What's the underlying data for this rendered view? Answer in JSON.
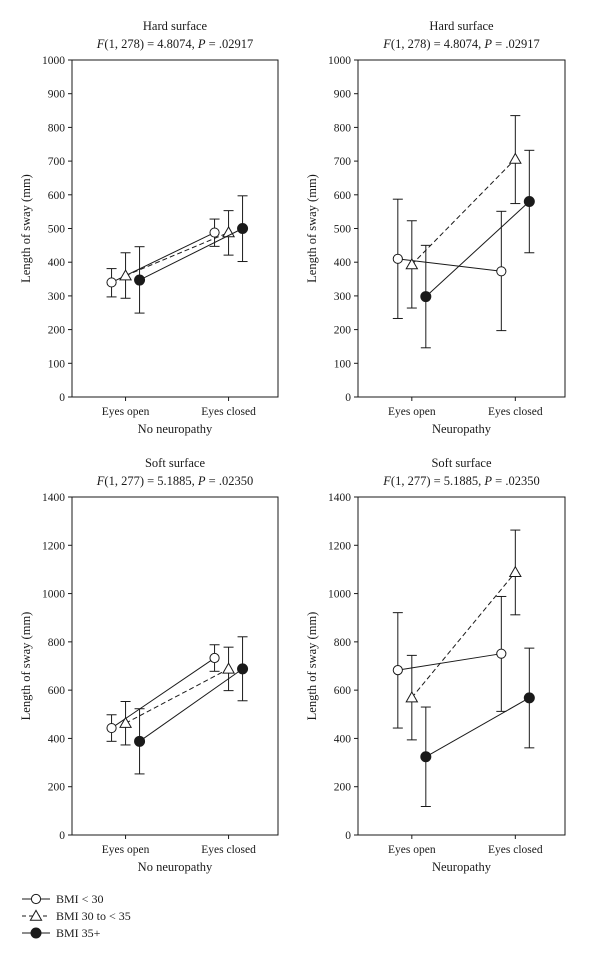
{
  "chart_data": [
    {
      "type": "line",
      "title": "Hard surface",
      "stat": {
        "f_df": "1, 278",
        "f_value": "4.8074",
        "p_value": ".02917"
      },
      "xlabel": "No neuropathy",
      "ylabel": "Length of sway (mm)",
      "categories": [
        "Eyes open",
        "Eyes closed"
      ],
      "ylim": [
        0,
        1000
      ],
      "yticks": [
        "0",
        "100",
        "200",
        "300",
        "400",
        "500",
        "600",
        "700",
        "800",
        "900",
        "1000"
      ],
      "ytick_values": [
        0,
        100,
        200,
        300,
        400,
        500,
        600,
        700,
        800,
        900,
        1000
      ],
      "series": [
        {
          "key": "bmi_lt30",
          "values": [
            340,
            488
          ],
          "lower": [
            297,
            447
          ],
          "upper": [
            381,
            528
          ]
        },
        {
          "key": "bmi_30_35",
          "values": [
            360,
            488
          ],
          "lower": [
            293,
            421
          ],
          "upper": [
            428,
            553
          ]
        },
        {
          "key": "bmi_35p",
          "values": [
            347,
            500
          ],
          "lower": [
            249,
            402
          ],
          "upper": [
            446,
            597
          ]
        }
      ]
    },
    {
      "type": "line",
      "title": "Hard surface",
      "stat": {
        "f_df": "1, 278",
        "f_value": "4.8074",
        "p_value": ".02917"
      },
      "xlabel": "Neuropathy",
      "ylabel": "Length of sway (mm)",
      "categories": [
        "Eyes open",
        "Eyes closed"
      ],
      "ylim": [
        0,
        1000
      ],
      "yticks": [
        "0",
        "100",
        "200",
        "300",
        "400",
        "500",
        "600",
        "700",
        "800",
        "900",
        "1000"
      ],
      "ytick_values": [
        0,
        100,
        200,
        300,
        400,
        500,
        600,
        700,
        800,
        900,
        1000
      ],
      "series": [
        {
          "key": "bmi_lt30",
          "values": [
            410,
            373
          ],
          "lower": [
            233,
            197
          ],
          "upper": [
            587,
            551
          ]
        },
        {
          "key": "bmi_30_35",
          "values": [
            393,
            706
          ],
          "lower": [
            264,
            574
          ],
          "upper": [
            523,
            835
          ]
        },
        {
          "key": "bmi_35p",
          "values": [
            298,
            580
          ],
          "lower": [
            146,
            428
          ],
          "upper": [
            450,
            732
          ]
        }
      ]
    },
    {
      "type": "line",
      "title": "Soft surface",
      "stat": {
        "f_df": "1, 277",
        "f_value": "5.1885",
        "p_value": ".02350"
      },
      "xlabel": "No neuropathy",
      "ylabel": "Length of sway (mm)",
      "categories": [
        "Eyes open",
        "Eyes closed"
      ],
      "ylim": [
        0,
        1400
      ],
      "yticks": [
        "0",
        "200",
        "400",
        "600",
        "800",
        "1000",
        "1200",
        "1400"
      ],
      "ytick_values": [
        0,
        200,
        400,
        600,
        800,
        1000,
        1200,
        1400
      ],
      "series": [
        {
          "key": "bmi_lt30",
          "values": [
            443,
            733
          ],
          "lower": [
            388,
            678
          ],
          "upper": [
            498,
            788
          ]
        },
        {
          "key": "bmi_30_35",
          "values": [
            463,
            688
          ],
          "lower": [
            373,
            598
          ],
          "upper": [
            553,
            778
          ]
        },
        {
          "key": "bmi_35p",
          "values": [
            388,
            688
          ],
          "lower": [
            253,
            556
          ],
          "upper": [
            523,
            821
          ]
        }
      ]
    },
    {
      "type": "line",
      "title": "Soft surface",
      "stat": {
        "f_df": "1, 277",
        "f_value": "5.1885",
        "p_value": ".02350"
      },
      "xlabel": "Neuropathy",
      "ylabel": "Length of sway (mm)",
      "categories": [
        "Eyes open",
        "Eyes closed"
      ],
      "ylim": [
        0,
        1400
      ],
      "yticks": [
        "0",
        "200",
        "400",
        "600",
        "800",
        "1000",
        "1200",
        "1400"
      ],
      "ytick_values": [
        0,
        200,
        400,
        600,
        800,
        1000,
        1200,
        1400
      ],
      "series": [
        {
          "key": "bmi_lt30",
          "values": [
            683,
            751
          ],
          "lower": [
            443,
            512
          ],
          "upper": [
            921,
            988
          ]
        },
        {
          "key": "bmi_30_35",
          "values": [
            569,
            1088
          ],
          "lower": [
            394,
            912
          ],
          "upper": [
            744,
            1263
          ]
        },
        {
          "key": "bmi_35p",
          "values": [
            324,
            568
          ],
          "lower": [
            118,
            361
          ],
          "upper": [
            530,
            774
          ]
        }
      ]
    }
  ],
  "legend": [
    {
      "key": "bmi_lt30",
      "label": "BMI < 30",
      "marker": "circle-open",
      "line": "solid"
    },
    {
      "key": "bmi_30_35",
      "label": "BMI 30 to < 35",
      "marker": "triangle-open",
      "line": "dashed"
    },
    {
      "key": "bmi_35p",
      "label": "BMI 35+",
      "marker": "circle-filled",
      "line": "solid"
    }
  ]
}
